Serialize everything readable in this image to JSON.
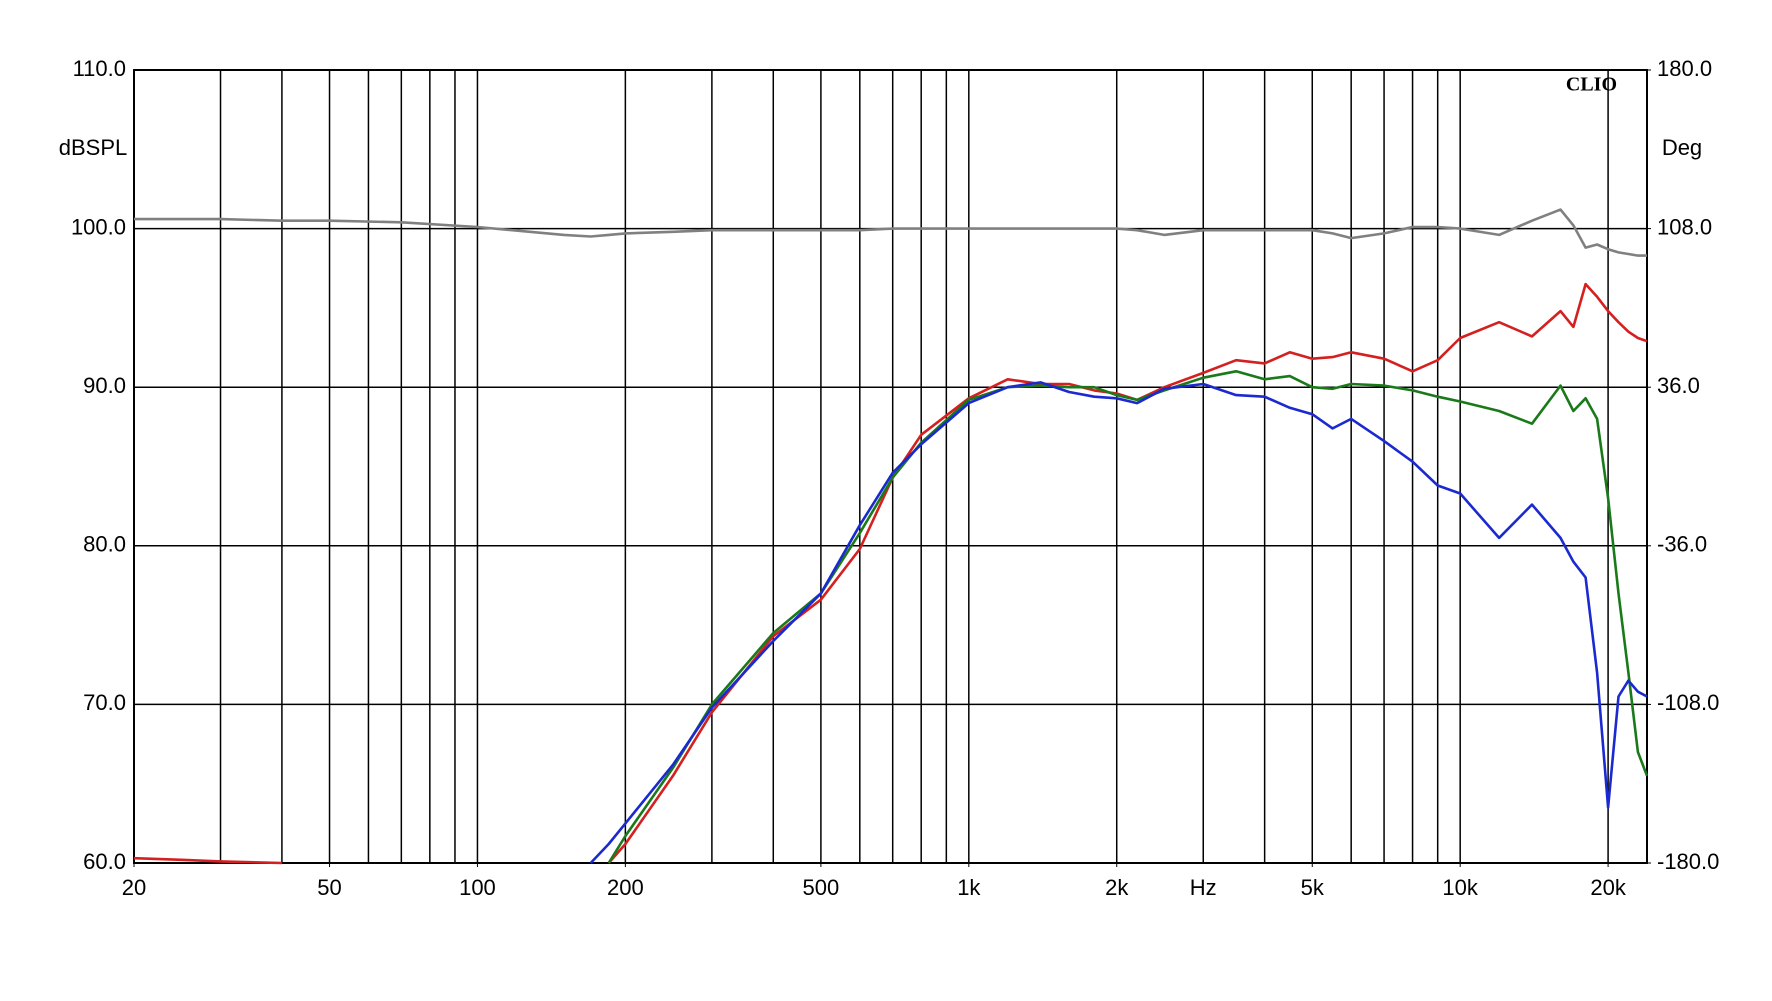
{
  "chart_data": {
    "type": "line",
    "brand": "CLIO",
    "y_label": "dBSPL",
    "y2_label": "Deg",
    "x_label": "Hz",
    "x_label_at": 3000,
    "log_x": true,
    "grid": true,
    "xlim": [
      20,
      24000
    ],
    "xticks": [
      20,
      50,
      100,
      200,
      500,
      {
        "value": 1000,
        "label": "1k"
      },
      {
        "value": 2000,
        "label": "2k"
      },
      {
        "value": 5000,
        "label": "5k"
      },
      {
        "value": 10000,
        "label": "10k"
      },
      {
        "value": 20000,
        "label": "20k"
      }
    ],
    "xgrid": [
      20,
      30,
      40,
      50,
      60,
      70,
      80,
      90,
      100,
      200,
      300,
      400,
      500,
      600,
      700,
      800,
      900,
      1000,
      2000,
      3000,
      4000,
      5000,
      6000,
      7000,
      8000,
      9000,
      10000,
      20000
    ],
    "ylim": [
      60,
      110
    ],
    "yticks": [
      {
        "value": 60,
        "label": "60.0"
      },
      {
        "value": 70,
        "label": "70.0"
      },
      {
        "value": 80,
        "label": "80.0"
      },
      {
        "value": 90,
        "label": "90.0"
      },
      {
        "value": 100,
        "label": "100.0"
      },
      {
        "value": 110,
        "label": "110.0"
      }
    ],
    "y2lim": [
      -180,
      180
    ],
    "y2ticks": [
      {
        "value": -180,
        "label": "-180.0"
      },
      {
        "value": -108,
        "label": "-108.0"
      },
      {
        "value": -36,
        "label": "-36.0"
      },
      {
        "value": 36,
        "label": "36.0"
      },
      {
        "value": 108,
        "label": "108.0"
      },
      {
        "value": 180,
        "label": "180.0"
      }
    ],
    "x": [
      20,
      25,
      30,
      40,
      50,
      70,
      100,
      150,
      170,
      185,
      200,
      250,
      300,
      400,
      500,
      600,
      700,
      800,
      1000,
      1200,
      1400,
      1600,
      1800,
      2000,
      2200,
      2500,
      3000,
      3500,
      4000,
      4500,
      5000,
      5500,
      6000,
      7000,
      8000,
      9000,
      10000,
      12000,
      14000,
      16000,
      17000,
      18000,
      19000,
      20000,
      21000,
      22000,
      23000,
      24000
    ],
    "series": [
      {
        "color": "#808080",
        "values": [
          100.6,
          100.6,
          100.6,
          100.5,
          100.5,
          100.4,
          100.1,
          99.6,
          99.5,
          99.6,
          99.7,
          99.8,
          99.9,
          99.9,
          99.9,
          99.9,
          100,
          100,
          100,
          100,
          100,
          100,
          100,
          100,
          99.9,
          99.6,
          99.9,
          99.9,
          99.9,
          99.9,
          99.9,
          99.7,
          99.4,
          99.7,
          100.1,
          100.1,
          100,
          99.6,
          100.5,
          101.2,
          100.2,
          98.8,
          99,
          98.7,
          98.5,
          98.4,
          98.3,
          98.3
        ]
      },
      {
        "color": "#d42020",
        "values": [
          60.3,
          60.2,
          60.1,
          60.0,
          null,
          null,
          null,
          null,
          null,
          60.0,
          61.2,
          65.5,
          69.5,
          74.3,
          76.6,
          79.8,
          84.3,
          87,
          89.3,
          90.5,
          90.2,
          90.2,
          89.8,
          89.6,
          89.2,
          90.0,
          90.9,
          91.7,
          91.5,
          92.2,
          91.8,
          91.9,
          92.2,
          91.8,
          91.0,
          91.7,
          93.1,
          94.1,
          93.2,
          94.8,
          93.8,
          96.5,
          95.7,
          94.8,
          94.1,
          93.5,
          93.1,
          92.9
        ]
      },
      {
        "color": "#1a7a1a",
        "values": [
          null,
          null,
          null,
          null,
          null,
          null,
          null,
          null,
          null,
          60.0,
          61.7,
          66,
          70,
          74.5,
          77,
          80.8,
          84.3,
          86.5,
          89.2,
          90,
          90.1,
          90,
          90,
          89.5,
          89.2,
          89.8,
          90.6,
          91,
          90.5,
          90.7,
          90,
          89.9,
          90.2,
          90.1,
          89.8,
          89.4,
          89.1,
          88.5,
          87.7,
          90.1,
          88.5,
          89.3,
          88,
          83,
          77,
          72,
          67,
          65.5
        ]
      },
      {
        "color": "#1a2ad0",
        "values": [
          null,
          null,
          null,
          null,
          null,
          null,
          null,
          null,
          60.0,
          61.2,
          62.5,
          66.2,
          69.8,
          74,
          77,
          81.3,
          84.6,
          86.4,
          89.0,
          90,
          90.3,
          89.7,
          89.4,
          89.3,
          89,
          89.9,
          90.2,
          89.5,
          89.4,
          88.7,
          88.3,
          87.4,
          88,
          86.6,
          85.3,
          83.8,
          83.3,
          80.5,
          82.6,
          80.5,
          79,
          78,
          72,
          63.5,
          70.5,
          71.5,
          70.8,
          70.5
        ]
      }
    ]
  }
}
